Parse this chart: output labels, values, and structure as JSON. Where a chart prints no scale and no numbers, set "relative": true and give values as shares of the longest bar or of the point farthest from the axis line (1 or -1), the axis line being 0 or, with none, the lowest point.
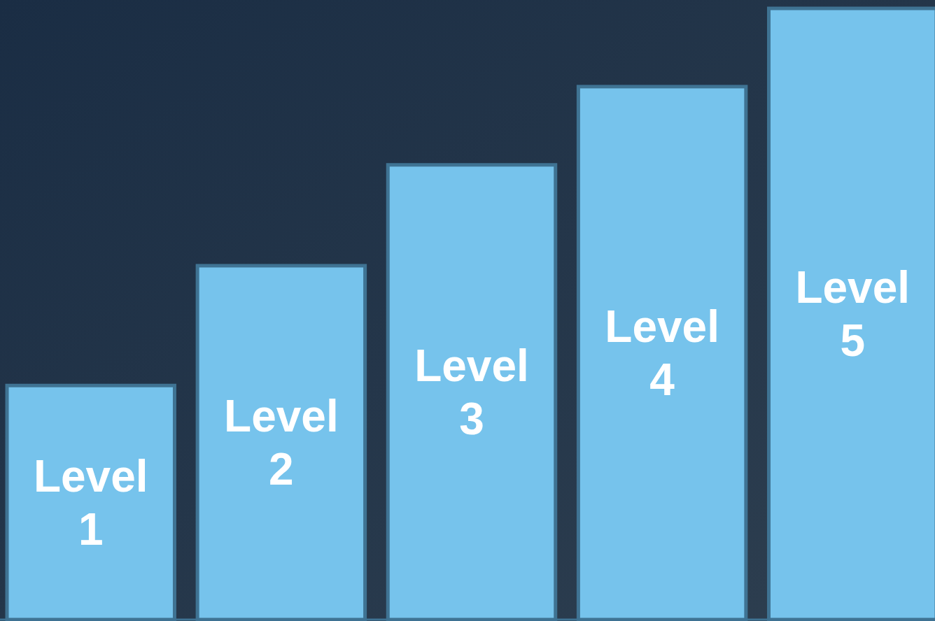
{
  "chart_data": {
    "type": "bar",
    "relative": true,
    "categories": [
      "Level 1",
      "Level 2",
      "Level 3",
      "Level 4",
      "Level 5"
    ],
    "values": [
      0.383,
      0.579,
      0.744,
      0.872,
      1
    ],
    "color": "#76c3ec"
  }
}
